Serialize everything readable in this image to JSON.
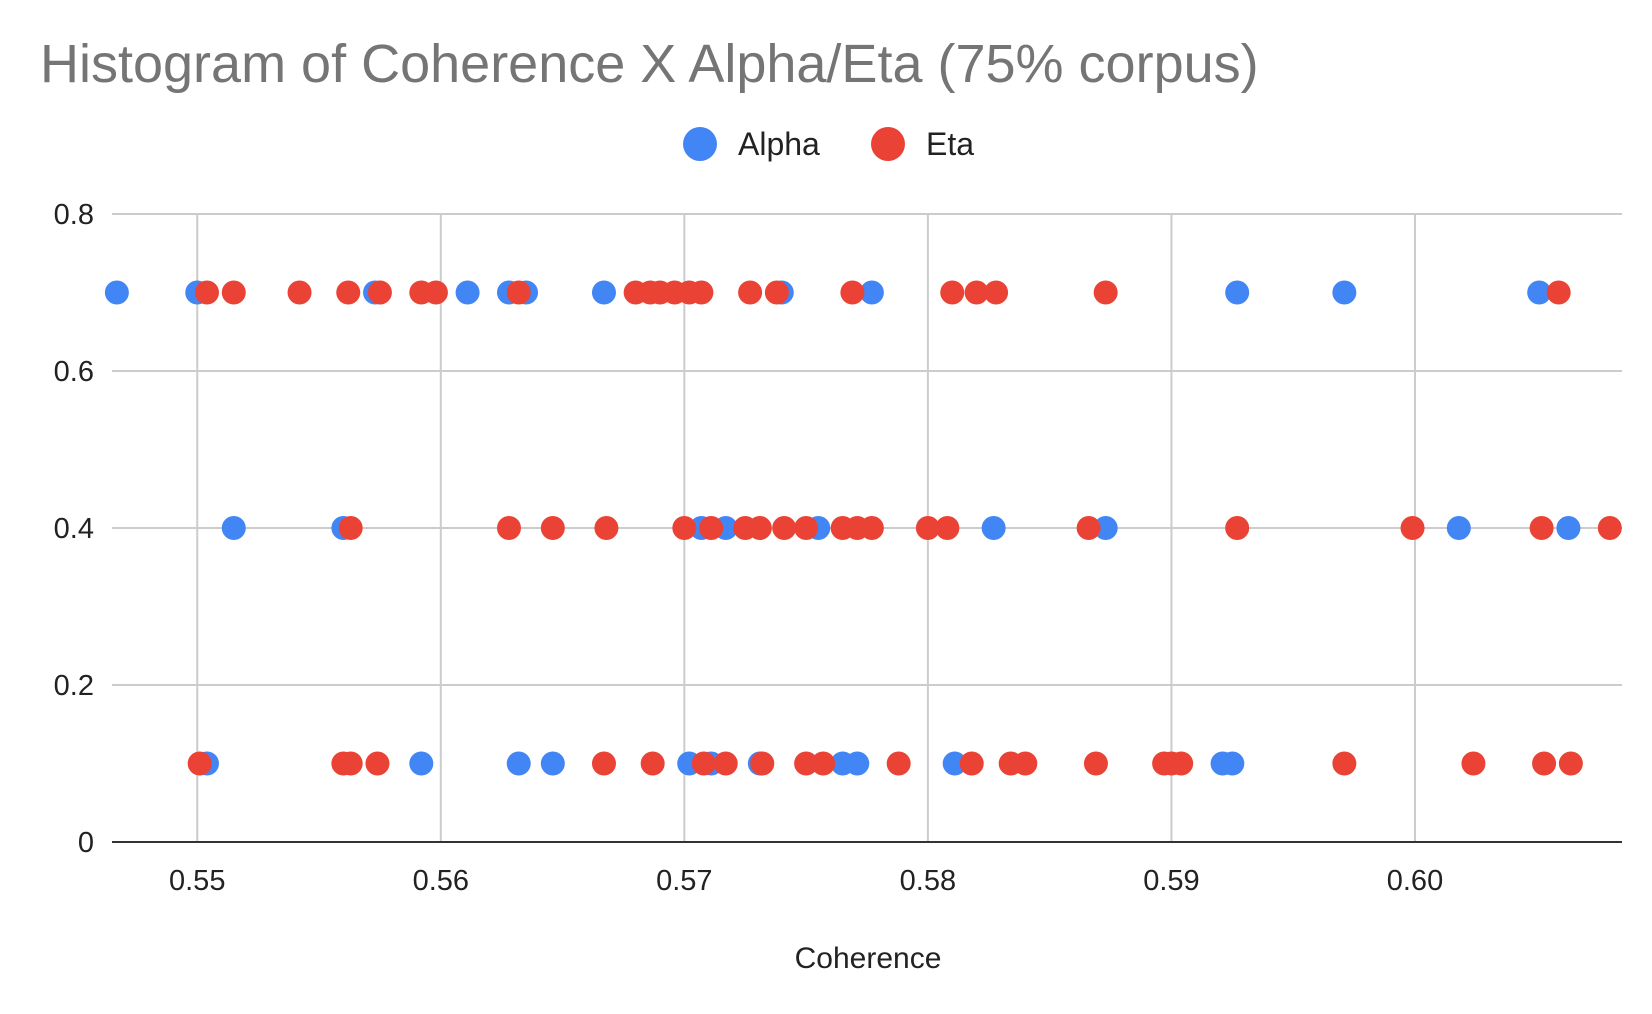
{
  "chart_data": {
    "type": "scatter",
    "title": "Histogram of Coherence X Alpha/Eta (75% corpus)",
    "xlabel": "Coherence",
    "ylabel": "",
    "xlim": [
      0.5465,
      0.6085
    ],
    "ylim": [
      0,
      0.8
    ],
    "x_ticks": [
      0.55,
      0.56,
      0.57,
      0.58,
      0.59,
      0.6
    ],
    "x_tick_labels": [
      "0.55",
      "0.56",
      "0.57",
      "0.58",
      "0.59",
      "0.60"
    ],
    "y_ticks": [
      0,
      0.2,
      0.4,
      0.6,
      0.8
    ],
    "y_tick_labels": [
      "0",
      "0.2",
      "0.4",
      "0.6",
      "0.8"
    ],
    "grid": true,
    "legend_position": "top-center",
    "series": [
      {
        "name": "Alpha",
        "color": "#4285f4",
        "points": [
          [
            0.5467,
            0.7
          ],
          [
            0.55,
            0.7
          ],
          [
            0.5573,
            0.7
          ],
          [
            0.5611,
            0.7
          ],
          [
            0.5628,
            0.7
          ],
          [
            0.5635,
            0.7
          ],
          [
            0.5667,
            0.7
          ],
          [
            0.574,
            0.7
          ],
          [
            0.5777,
            0.7
          ],
          [
            0.5927,
            0.7
          ],
          [
            0.5971,
            0.7
          ],
          [
            0.6051,
            0.7
          ],
          [
            0.5515,
            0.4
          ],
          [
            0.556,
            0.4
          ],
          [
            0.5707,
            0.4
          ],
          [
            0.5717,
            0.4
          ],
          [
            0.5755,
            0.4
          ],
          [
            0.5827,
            0.4
          ],
          [
            0.5873,
            0.4
          ],
          [
            0.6018,
            0.4
          ],
          [
            0.6063,
            0.4
          ],
          [
            0.5504,
            0.1
          ],
          [
            0.5592,
            0.1
          ],
          [
            0.5632,
            0.1
          ],
          [
            0.5646,
            0.1
          ],
          [
            0.5702,
            0.1
          ],
          [
            0.5711,
            0.1
          ],
          [
            0.5731,
            0.1
          ],
          [
            0.5765,
            0.1
          ],
          [
            0.5771,
            0.1
          ],
          [
            0.5811,
            0.1
          ],
          [
            0.5921,
            0.1
          ],
          [
            0.5925,
            0.1
          ]
        ]
      },
      {
        "name": "Eta",
        "color": "#ea4335",
        "points": [
          [
            0.5504,
            0.7
          ],
          [
            0.5515,
            0.7
          ],
          [
            0.5542,
            0.7
          ],
          [
            0.5562,
            0.7
          ],
          [
            0.5575,
            0.7
          ],
          [
            0.5592,
            0.7
          ],
          [
            0.5598,
            0.7
          ],
          [
            0.5632,
            0.7
          ],
          [
            0.568,
            0.7
          ],
          [
            0.5686,
            0.7
          ],
          [
            0.569,
            0.7
          ],
          [
            0.5696,
            0.7
          ],
          [
            0.5702,
            0.7
          ],
          [
            0.5707,
            0.7
          ],
          [
            0.5727,
            0.7
          ],
          [
            0.5738,
            0.7
          ],
          [
            0.5769,
            0.7
          ],
          [
            0.581,
            0.7
          ],
          [
            0.582,
            0.7
          ],
          [
            0.5828,
            0.7
          ],
          [
            0.5873,
            0.7
          ],
          [
            0.6059,
            0.7
          ],
          [
            0.5563,
            0.4
          ],
          [
            0.5628,
            0.4
          ],
          [
            0.5646,
            0.4
          ],
          [
            0.5668,
            0.4
          ],
          [
            0.57,
            0.4
          ],
          [
            0.5711,
            0.4
          ],
          [
            0.5725,
            0.4
          ],
          [
            0.5731,
            0.4
          ],
          [
            0.5741,
            0.4
          ],
          [
            0.575,
            0.4
          ],
          [
            0.5765,
            0.4
          ],
          [
            0.5771,
            0.4
          ],
          [
            0.5777,
            0.4
          ],
          [
            0.58,
            0.4
          ],
          [
            0.5808,
            0.4
          ],
          [
            0.5866,
            0.4
          ],
          [
            0.5927,
            0.4
          ],
          [
            0.5999,
            0.4
          ],
          [
            0.6052,
            0.4
          ],
          [
            0.608,
            0.4
          ],
          [
            0.5501,
            0.1
          ],
          [
            0.556,
            0.1
          ],
          [
            0.5563,
            0.1
          ],
          [
            0.5574,
            0.1
          ],
          [
            0.5667,
            0.1
          ],
          [
            0.5687,
            0.1
          ],
          [
            0.5708,
            0.1
          ],
          [
            0.5717,
            0.1
          ],
          [
            0.5732,
            0.1
          ],
          [
            0.575,
            0.1
          ],
          [
            0.5757,
            0.1
          ],
          [
            0.5788,
            0.1
          ],
          [
            0.5818,
            0.1
          ],
          [
            0.5834,
            0.1
          ],
          [
            0.584,
            0.1
          ],
          [
            0.5869,
            0.1
          ],
          [
            0.5897,
            0.1
          ],
          [
            0.59,
            0.1
          ],
          [
            0.5904,
            0.1
          ],
          [
            0.5971,
            0.1
          ],
          [
            0.6024,
            0.1
          ],
          [
            0.6053,
            0.1
          ],
          [
            0.6064,
            0.1
          ]
        ]
      }
    ]
  }
}
